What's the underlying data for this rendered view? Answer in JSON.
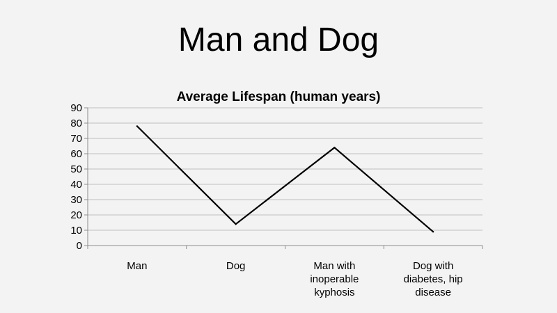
{
  "slide": {
    "title": "Man and Dog"
  },
  "chart_data": {
    "type": "line",
    "title": "Average Lifespan (human years)",
    "categories": [
      "Man",
      "Dog",
      "Man with inoperable kyphosis",
      "Dog with diabetes, hip disease"
    ],
    "category_lines": [
      [
        "Man"
      ],
      [
        "Dog"
      ],
      [
        "Man with",
        "inoperable",
        "kyphosis"
      ],
      [
        "Dog with",
        "diabetes, hip",
        "disease"
      ]
    ],
    "values": [
      78,
      14,
      64,
      9
    ],
    "ylim": [
      0,
      90
    ],
    "yticks": [
      0,
      10,
      20,
      30,
      40,
      50,
      60,
      70,
      80,
      90
    ],
    "xlabel": "",
    "ylabel": "",
    "grid": true,
    "legend": "none",
    "colors": {
      "line": "#000000",
      "grid": "#bfbfbf",
      "axis": "#8c8c8c"
    }
  }
}
